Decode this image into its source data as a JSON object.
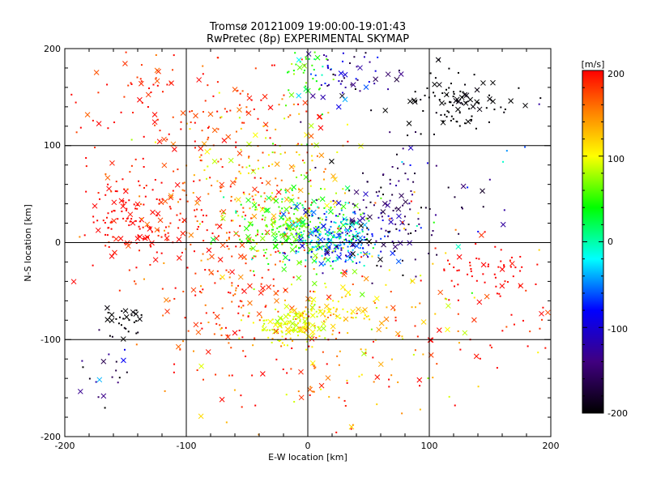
{
  "chart_data": {
    "type": "scatter",
    "title": "Tromsø 20121009 19:00:00-19:01:43",
    "subtitle": "RwPretec (8p) EXPERIMENTAL SKYMAP",
    "xlabel": "E-W location [km]",
    "ylabel": "N-S location [km]",
    "xlim": [
      -200,
      200
    ],
    "ylim": [
      -200,
      200
    ],
    "xticks": [
      "-200",
      "-100",
      "0",
      "100",
      "200"
    ],
    "yticks": [
      "-200",
      "-100",
      "0",
      "100",
      "200"
    ],
    "grid": true,
    "colorbar": {
      "label": "[m/s]",
      "range": [
        -200,
        200
      ],
      "ticks": [
        "200",
        "100",
        "0",
        "-100",
        "-200"
      ]
    },
    "clusters": [
      {
        "x": -140,
        "y": 20,
        "sx": 25,
        "sy": 20,
        "v": 200,
        "vs": 10,
        "n": 120
      },
      {
        "x": -100,
        "y": 60,
        "sx": 40,
        "sy": 60,
        "v": 180,
        "vs": 20,
        "n": 140
      },
      {
        "x": -60,
        "y": -30,
        "sx": 35,
        "sy": 60,
        "v": 180,
        "vs": 25,
        "n": 220
      },
      {
        "x": -30,
        "y": 60,
        "sx": 35,
        "sy": 40,
        "v": 120,
        "vs": 40,
        "n": 160
      },
      {
        "x": -10,
        "y": 15,
        "sx": 25,
        "sy": 20,
        "v": 30,
        "vs": 30,
        "n": 260
      },
      {
        "x": 20,
        "y": 5,
        "sx": 20,
        "sy": 15,
        "v": -80,
        "vs": 30,
        "n": 240
      },
      {
        "x": 60,
        "y": 25,
        "sx": 25,
        "sy": 30,
        "v": -170,
        "vs": 25,
        "n": 120
      },
      {
        "x": -15,
        "y": -85,
        "sx": 15,
        "sy": 8,
        "v": 90,
        "vs": 15,
        "n": 120
      },
      {
        "x": 15,
        "y": -70,
        "sx": 15,
        "sy": 10,
        "v": 110,
        "vs": 20,
        "n": 60
      },
      {
        "x": 125,
        "y": 145,
        "sx": 20,
        "sy": 15,
        "v": -200,
        "vs": 5,
        "n": 100
      },
      {
        "x": 30,
        "y": 175,
        "sx": 20,
        "sy": 15,
        "v": -130,
        "vs": 40,
        "n": 60
      },
      {
        "x": 0,
        "y": 170,
        "sx": 10,
        "sy": 15,
        "v": 20,
        "vs": 30,
        "n": 40
      },
      {
        "x": 150,
        "y": -30,
        "sx": 25,
        "sy": 15,
        "v": 200,
        "vs": 10,
        "n": 60
      },
      {
        "x": -150,
        "y": -80,
        "sx": 8,
        "sy": 10,
        "v": -200,
        "vs": 5,
        "n": 30
      },
      {
        "x": -165,
        "y": -135,
        "sx": 10,
        "sy": 20,
        "v": -160,
        "vs": 40,
        "n": 20
      },
      {
        "x": 20,
        "y": -120,
        "sx": 50,
        "sy": 40,
        "v": 150,
        "vs": 40,
        "n": 120
      },
      {
        "x": 80,
        "y": -60,
        "sx": 40,
        "sy": 40,
        "v": 130,
        "vs": 50,
        "n": 80
      },
      {
        "x": -90,
        "y": 150,
        "sx": 50,
        "sy": 30,
        "v": 190,
        "vs": 20,
        "n": 80
      },
      {
        "x": 100,
        "y": 80,
        "sx": 50,
        "sy": 40,
        "v": -150,
        "vs": 50,
        "n": 40
      },
      {
        "x": -150,
        "y": 120,
        "sx": 40,
        "sy": 40,
        "v": 200,
        "vs": 10,
        "n": 20
      },
      {
        "x": 160,
        "y": -80,
        "sx": 20,
        "sy": 20,
        "v": 190,
        "vs": 20,
        "n": 20
      }
    ]
  }
}
